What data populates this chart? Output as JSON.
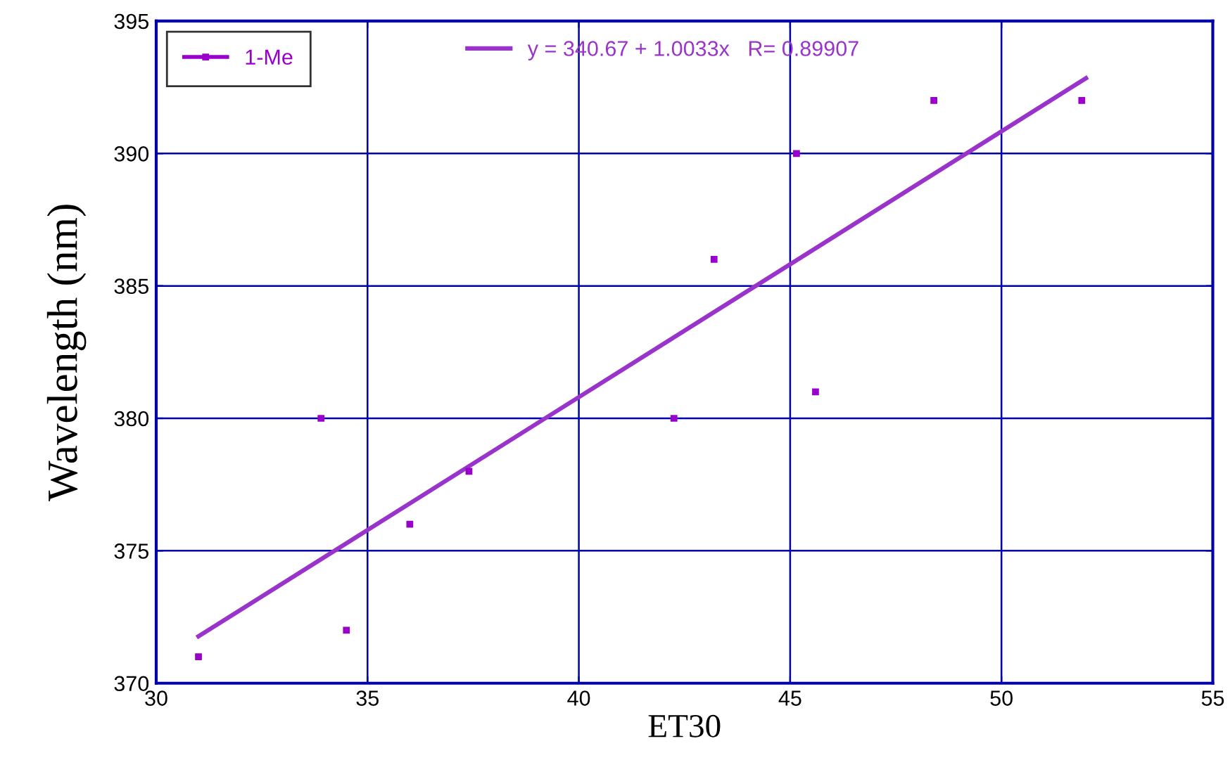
{
  "chart_data": {
    "type": "scatter",
    "xlabel": "ET30",
    "ylabel": "Wavelength (nm)",
    "xlim": [
      30,
      55
    ],
    "xticks": [
      30,
      35,
      40,
      45,
      50,
      55
    ],
    "ylim": [
      370,
      395
    ],
    "yticks": [
      370,
      375,
      380,
      385,
      390,
      395
    ],
    "grid": true,
    "legend": "top left",
    "marker": "square",
    "series": [
      {
        "name": "1-Me",
        "color": "#9900cc",
        "x": [
          31,
          33.9,
          34.5,
          36,
          37.4,
          42.25,
          43.2,
          45.15,
          45.6,
          48.4,
          51.9
        ],
        "values": [
          371,
          380,
          372,
          376,
          378,
          380,
          386,
          390,
          381,
          392,
          392
        ]
      },
      {
        "name": "y = 340.67 + 1.0033x   R= 0.89907",
        "type": "line",
        "color": "#9933cc",
        "marker": "none",
        "x": [
          31,
          52
        ],
        "values": [
          371.77,
          392.84
        ]
      }
    ]
  }
}
